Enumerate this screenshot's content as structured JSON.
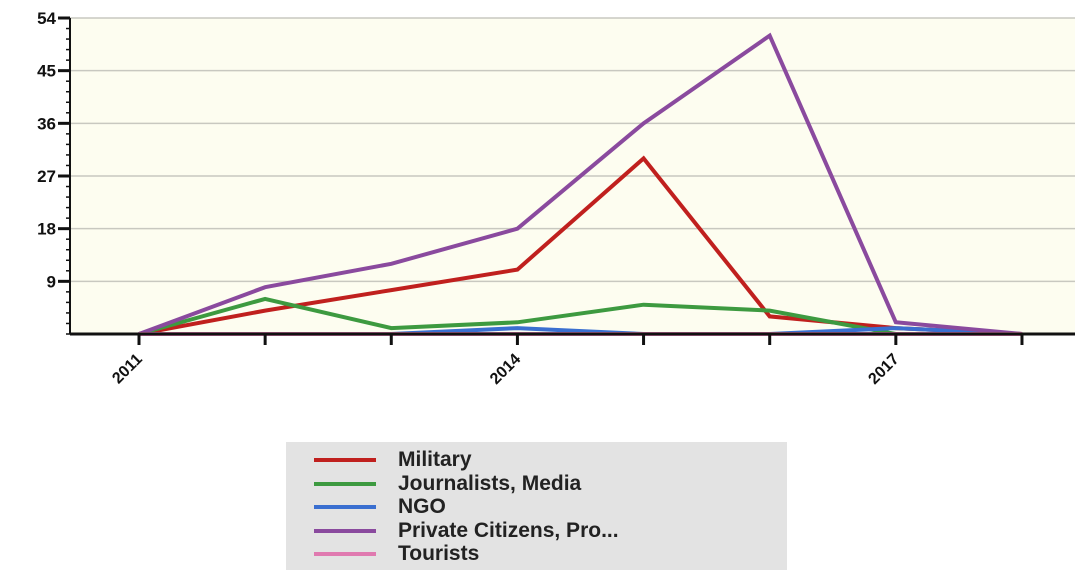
{
  "chart_data": {
    "type": "line",
    "x": [
      2011,
      2012,
      2013,
      2014,
      2015,
      2016,
      2017,
      2018
    ],
    "x_ticks": [
      "2011",
      "2014",
      "2017"
    ],
    "y_ticks": [
      "9",
      "18",
      "27",
      "36",
      "45",
      "54"
    ],
    "ylim": [
      0,
      54
    ],
    "grid": "horizontal",
    "background": "#fdfdf0",
    "legend_position": "bottom",
    "series": [
      {
        "name": "Military",
        "color": "#c0201e",
        "values": [
          0,
          4,
          7.5,
          11,
          30,
          3,
          1,
          0
        ]
      },
      {
        "name": "Journalists, Media",
        "color": "#3d9a40",
        "values": [
          0,
          6,
          1,
          2,
          5,
          4,
          0,
          0
        ]
      },
      {
        "name": "NGO",
        "color": "#3a6fd0",
        "values": [
          0,
          0,
          0,
          1,
          0,
          0,
          1,
          0
        ]
      },
      {
        "name": "Private Citizens, Pro...",
        "color": "#8a4a9e",
        "values": [
          0,
          8,
          12,
          18,
          36,
          51,
          2,
          0
        ]
      },
      {
        "name": "Tourists",
        "color": "#e07ab0",
        "values": [
          0,
          0,
          0,
          0,
          0,
          0,
          0,
          0
        ]
      }
    ]
  }
}
